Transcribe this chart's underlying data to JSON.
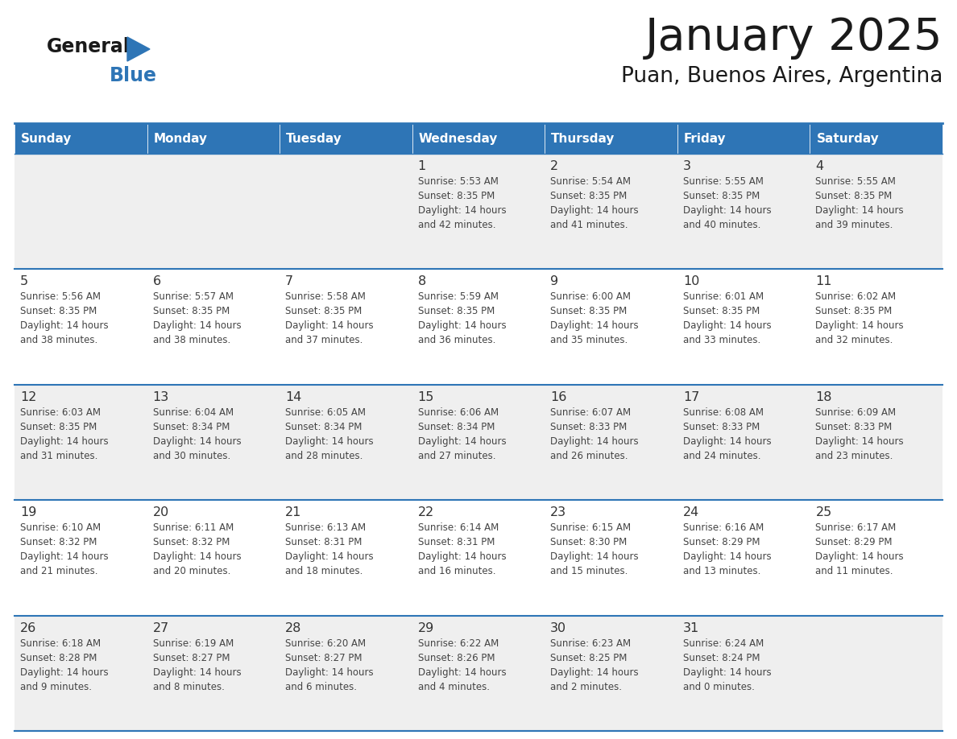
{
  "title": "January 2025",
  "subtitle": "Puan, Buenos Aires, Argentina",
  "header_bg": "#2E75B6",
  "header_text_color": "#FFFFFF",
  "day_names": [
    "Sunday",
    "Monday",
    "Tuesday",
    "Wednesday",
    "Thursday",
    "Friday",
    "Saturday"
  ],
  "row_bg": [
    "#EFEFEF",
    "#FFFFFF",
    "#EFEFEF",
    "#FFFFFF",
    "#EFEFEF"
  ],
  "cell_border_color": "#2E75B6",
  "date_text_color": "#333333",
  "info_text_color": "#444444",
  "calendar": [
    [
      {
        "day": "",
        "info": ""
      },
      {
        "day": "",
        "info": ""
      },
      {
        "day": "",
        "info": ""
      },
      {
        "day": "1",
        "info": "Sunrise: 5:53 AM\nSunset: 8:35 PM\nDaylight: 14 hours\nand 42 minutes."
      },
      {
        "day": "2",
        "info": "Sunrise: 5:54 AM\nSunset: 8:35 PM\nDaylight: 14 hours\nand 41 minutes."
      },
      {
        "day": "3",
        "info": "Sunrise: 5:55 AM\nSunset: 8:35 PM\nDaylight: 14 hours\nand 40 minutes."
      },
      {
        "day": "4",
        "info": "Sunrise: 5:55 AM\nSunset: 8:35 PM\nDaylight: 14 hours\nand 39 minutes."
      }
    ],
    [
      {
        "day": "5",
        "info": "Sunrise: 5:56 AM\nSunset: 8:35 PM\nDaylight: 14 hours\nand 38 minutes."
      },
      {
        "day": "6",
        "info": "Sunrise: 5:57 AM\nSunset: 8:35 PM\nDaylight: 14 hours\nand 38 minutes."
      },
      {
        "day": "7",
        "info": "Sunrise: 5:58 AM\nSunset: 8:35 PM\nDaylight: 14 hours\nand 37 minutes."
      },
      {
        "day": "8",
        "info": "Sunrise: 5:59 AM\nSunset: 8:35 PM\nDaylight: 14 hours\nand 36 minutes."
      },
      {
        "day": "9",
        "info": "Sunrise: 6:00 AM\nSunset: 8:35 PM\nDaylight: 14 hours\nand 35 minutes."
      },
      {
        "day": "10",
        "info": "Sunrise: 6:01 AM\nSunset: 8:35 PM\nDaylight: 14 hours\nand 33 minutes."
      },
      {
        "day": "11",
        "info": "Sunrise: 6:02 AM\nSunset: 8:35 PM\nDaylight: 14 hours\nand 32 minutes."
      }
    ],
    [
      {
        "day": "12",
        "info": "Sunrise: 6:03 AM\nSunset: 8:35 PM\nDaylight: 14 hours\nand 31 minutes."
      },
      {
        "day": "13",
        "info": "Sunrise: 6:04 AM\nSunset: 8:34 PM\nDaylight: 14 hours\nand 30 minutes."
      },
      {
        "day": "14",
        "info": "Sunrise: 6:05 AM\nSunset: 8:34 PM\nDaylight: 14 hours\nand 28 minutes."
      },
      {
        "day": "15",
        "info": "Sunrise: 6:06 AM\nSunset: 8:34 PM\nDaylight: 14 hours\nand 27 minutes."
      },
      {
        "day": "16",
        "info": "Sunrise: 6:07 AM\nSunset: 8:33 PM\nDaylight: 14 hours\nand 26 minutes."
      },
      {
        "day": "17",
        "info": "Sunrise: 6:08 AM\nSunset: 8:33 PM\nDaylight: 14 hours\nand 24 minutes."
      },
      {
        "day": "18",
        "info": "Sunrise: 6:09 AM\nSunset: 8:33 PM\nDaylight: 14 hours\nand 23 minutes."
      }
    ],
    [
      {
        "day": "19",
        "info": "Sunrise: 6:10 AM\nSunset: 8:32 PM\nDaylight: 14 hours\nand 21 minutes."
      },
      {
        "day": "20",
        "info": "Sunrise: 6:11 AM\nSunset: 8:32 PM\nDaylight: 14 hours\nand 20 minutes."
      },
      {
        "day": "21",
        "info": "Sunrise: 6:13 AM\nSunset: 8:31 PM\nDaylight: 14 hours\nand 18 minutes."
      },
      {
        "day": "22",
        "info": "Sunrise: 6:14 AM\nSunset: 8:31 PM\nDaylight: 14 hours\nand 16 minutes."
      },
      {
        "day": "23",
        "info": "Sunrise: 6:15 AM\nSunset: 8:30 PM\nDaylight: 14 hours\nand 15 minutes."
      },
      {
        "day": "24",
        "info": "Sunrise: 6:16 AM\nSunset: 8:29 PM\nDaylight: 14 hours\nand 13 minutes."
      },
      {
        "day": "25",
        "info": "Sunrise: 6:17 AM\nSunset: 8:29 PM\nDaylight: 14 hours\nand 11 minutes."
      }
    ],
    [
      {
        "day": "26",
        "info": "Sunrise: 6:18 AM\nSunset: 8:28 PM\nDaylight: 14 hours\nand 9 minutes."
      },
      {
        "day": "27",
        "info": "Sunrise: 6:19 AM\nSunset: 8:27 PM\nDaylight: 14 hours\nand 8 minutes."
      },
      {
        "day": "28",
        "info": "Sunrise: 6:20 AM\nSunset: 8:27 PM\nDaylight: 14 hours\nand 6 minutes."
      },
      {
        "day": "29",
        "info": "Sunrise: 6:22 AM\nSunset: 8:26 PM\nDaylight: 14 hours\nand 4 minutes."
      },
      {
        "day": "30",
        "info": "Sunrise: 6:23 AM\nSunset: 8:25 PM\nDaylight: 14 hours\nand 2 minutes."
      },
      {
        "day": "31",
        "info": "Sunrise: 6:24 AM\nSunset: 8:24 PM\nDaylight: 14 hours\nand 0 minutes."
      },
      {
        "day": "",
        "info": ""
      }
    ]
  ],
  "logo_text_general": "General",
  "logo_text_blue": "Blue",
  "logo_color_general": "#1A1A1A",
  "logo_color_blue": "#2E75B6",
  "logo_triangle_color": "#2E75B6",
  "figsize": [
    11.88,
    9.18
  ],
  "dpi": 100
}
